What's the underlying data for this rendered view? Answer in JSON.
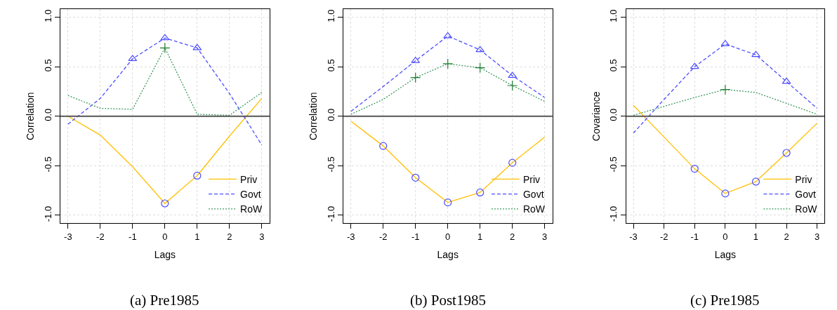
{
  "chart_data": [
    {
      "type": "line",
      "xlabel": "Lags",
      "ylabel": "Correlation",
      "annotations": [
        "(a) Pre1985"
      ],
      "x": [
        -3,
        -2,
        -1,
        0,
        1,
        2,
        3
      ],
      "xlim": [
        -3.24,
        3.24
      ],
      "xticks": [
        -3,
        -2,
        -1,
        0,
        1,
        2,
        3
      ],
      "ylim": [
        -1.08,
        1.08
      ],
      "yticks": [
        {
          "value": -1,
          "label": "-1.0"
        },
        {
          "value": -0.5,
          "label": "-0.5"
        },
        {
          "value": 0,
          "label": "0.0"
        },
        {
          "value": 0.5,
          "label": "0.5"
        },
        {
          "value": 1,
          "label": "1.0"
        }
      ],
      "grid": true,
      "legend": "bottom right",
      "ref_lines": [
        {
          "axis": "y",
          "value": 0,
          "color": "#555555"
        }
      ],
      "series": [
        {
          "name": "Priv",
          "color": "#ffbf00",
          "line_style": "solid",
          "values": [
            0.0,
            -0.19,
            -0.51,
            -0.88,
            -0.6,
            -0.2,
            0.18
          ]
        },
        {
          "name": "Govt",
          "color": "#4d4dff",
          "line_style": "dashed",
          "values": [
            -0.08,
            0.18,
            0.58,
            0.79,
            0.69,
            0.23,
            -0.29
          ]
        },
        {
          "name": "RoW",
          "color": "#3c9a5f",
          "line_style": "dotted",
          "values": [
            0.21,
            0.08,
            0.07,
            0.69,
            0.02,
            0.01,
            0.24
          ]
        },
        {
          "type": "scatter",
          "marker": "circle",
          "color": "#4d4dff",
          "x": [
            0,
            1
          ],
          "values": [
            -0.88,
            -0.6
          ]
        },
        {
          "type": "scatter",
          "marker": "triangle",
          "color": "#4d4dff",
          "x": [
            -1,
            0,
            1
          ],
          "values": [
            0.58,
            0.79,
            0.69
          ]
        },
        {
          "type": "scatter",
          "marker": "cross",
          "color": "#1e7d32",
          "x": [
            0
          ],
          "values": [
            0.69
          ]
        }
      ]
    },
    {
      "type": "line",
      "xlabel": "Lags",
      "ylabel": "Correlation",
      "annotations": [
        "(b) Post1985"
      ],
      "x": [
        -3,
        -2,
        -1,
        0,
        1,
        2,
        3
      ],
      "xlim": [
        -3.24,
        3.24
      ],
      "xticks": [
        -3,
        -2,
        -1,
        0,
        1,
        2,
        3
      ],
      "ylim": [
        -1.08,
        1.08
      ],
      "yticks": [
        {
          "value": -1,
          "label": "-1.0"
        },
        {
          "value": -0.5,
          "label": "-0.5"
        },
        {
          "value": 0,
          "label": "0.0"
        },
        {
          "value": 0.5,
          "label": "0.5"
        },
        {
          "value": 1,
          "label": "1.0"
        }
      ],
      "grid": true,
      "legend": "bottom right",
      "ref_lines": [
        {
          "axis": "y",
          "value": 0,
          "color": "#555555"
        }
      ],
      "series": [
        {
          "name": "Priv",
          "color": "#ffbf00",
          "line_style": "solid",
          "values": [
            -0.05,
            -0.3,
            -0.62,
            -0.87,
            -0.77,
            -0.47,
            -0.21
          ]
        },
        {
          "name": "Govt",
          "color": "#4d4dff",
          "line_style": "dashed",
          "values": [
            0.05,
            0.3,
            0.56,
            0.81,
            0.67,
            0.41,
            0.19
          ]
        },
        {
          "name": "RoW",
          "color": "#3c9a5f",
          "line_style": "dotted",
          "values": [
            0.02,
            0.17,
            0.39,
            0.53,
            0.49,
            0.31,
            0.15
          ]
        },
        {
          "type": "scatter",
          "marker": "circle",
          "color": "#4d4dff",
          "x": [
            -2,
            -1,
            0,
            1,
            2
          ],
          "values": [
            -0.3,
            -0.62,
            -0.87,
            -0.77,
            -0.47
          ]
        },
        {
          "type": "scatter",
          "marker": "triangle",
          "color": "#4d4dff",
          "x": [
            -1,
            0,
            1,
            2
          ],
          "values": [
            0.56,
            0.81,
            0.67,
            0.41
          ]
        },
        {
          "type": "scatter",
          "marker": "cross",
          "color": "#1e7d32",
          "x": [
            -1,
            0,
            1,
            2
          ],
          "values": [
            0.39,
            0.53,
            0.49,
            0.31
          ]
        }
      ]
    },
    {
      "type": "line",
      "xlabel": "Lags",
      "ylabel": "Covariance",
      "annotations": [
        "(c) Pre1985"
      ],
      "x": [
        -3,
        -2,
        -1,
        0,
        1,
        2,
        3
      ],
      "xlim": [
        -3.24,
        3.24
      ],
      "xticks": [
        -3,
        -2,
        -1,
        0,
        1,
        2,
        3
      ],
      "ylim": [
        -1.08,
        1.08
      ],
      "yticks": [
        {
          "value": -1,
          "label": "-1.0"
        },
        {
          "value": -0.5,
          "label": "-0.5"
        },
        {
          "value": 0,
          "label": "0.0"
        },
        {
          "value": 0.5,
          "label": "0.5"
        },
        {
          "value": 1,
          "label": "1.0"
        }
      ],
      "grid": true,
      "legend": "bottom right",
      "ref_lines": [
        {
          "axis": "y",
          "value": 0,
          "color": "#555555"
        }
      ],
      "series": [
        {
          "name": "Priv",
          "color": "#ffbf00",
          "line_style": "solid",
          "values": [
            0.11,
            -0.21,
            -0.53,
            -0.78,
            -0.66,
            -0.37,
            -0.07
          ]
        },
        {
          "name": "Govt",
          "color": "#4d4dff",
          "line_style": "dashed",
          "values": [
            -0.17,
            0.17,
            0.5,
            0.73,
            0.62,
            0.35,
            0.08
          ]
        },
        {
          "name": "RoW",
          "color": "#3c9a5f",
          "line_style": "dotted",
          "values": [
            0.01,
            0.1,
            0.19,
            0.27,
            0.24,
            0.13,
            0.02
          ]
        },
        {
          "type": "scatter",
          "marker": "circle",
          "color": "#4d4dff",
          "x": [
            -1,
            0,
            1,
            2
          ],
          "values": [
            -0.53,
            -0.78,
            -0.66,
            -0.37
          ]
        },
        {
          "type": "scatter",
          "marker": "triangle",
          "color": "#4d4dff",
          "x": [
            -1,
            0,
            1,
            2
          ],
          "values": [
            0.5,
            0.73,
            0.62,
            0.35
          ]
        },
        {
          "type": "scatter",
          "marker": "cross",
          "color": "#1e7d32",
          "x": [
            0
          ],
          "values": [
            0.27
          ]
        }
      ]
    }
  ]
}
